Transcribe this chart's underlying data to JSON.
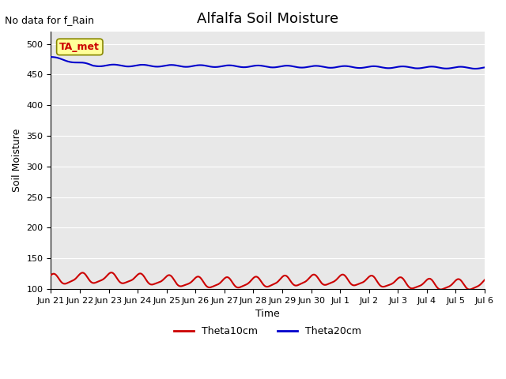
{
  "title": "Alfalfa Soil Moisture",
  "xlabel": "Time",
  "ylabel": "Soil Moisture",
  "no_data_text": "No data for f_Rain",
  "annotation_text": "TA_met",
  "ylim": [
    100,
    520
  ],
  "yticks": [
    100,
    150,
    200,
    250,
    300,
    350,
    400,
    450,
    500
  ],
  "xtick_labels": [
    "Jun 21",
    "Jun 22",
    "Jun 23",
    "Jun 24",
    "Jun 25",
    "Jun 26",
    "Jun 27",
    "Jun 28",
    "Jun 29",
    "Jun 30",
    "Jul 1",
    "Jul 2",
    "Jul 3",
    "Jul 4",
    "Jul 5",
    "Jul 6"
  ],
  "theta20_color": "#0000cc",
  "theta10_color": "#cc0000",
  "bg_color": "#e8e8e8",
  "legend_entries": [
    "Theta10cm",
    "Theta20cm"
  ],
  "legend_colors": [
    "#cc0000",
    "#0000cc"
  ]
}
